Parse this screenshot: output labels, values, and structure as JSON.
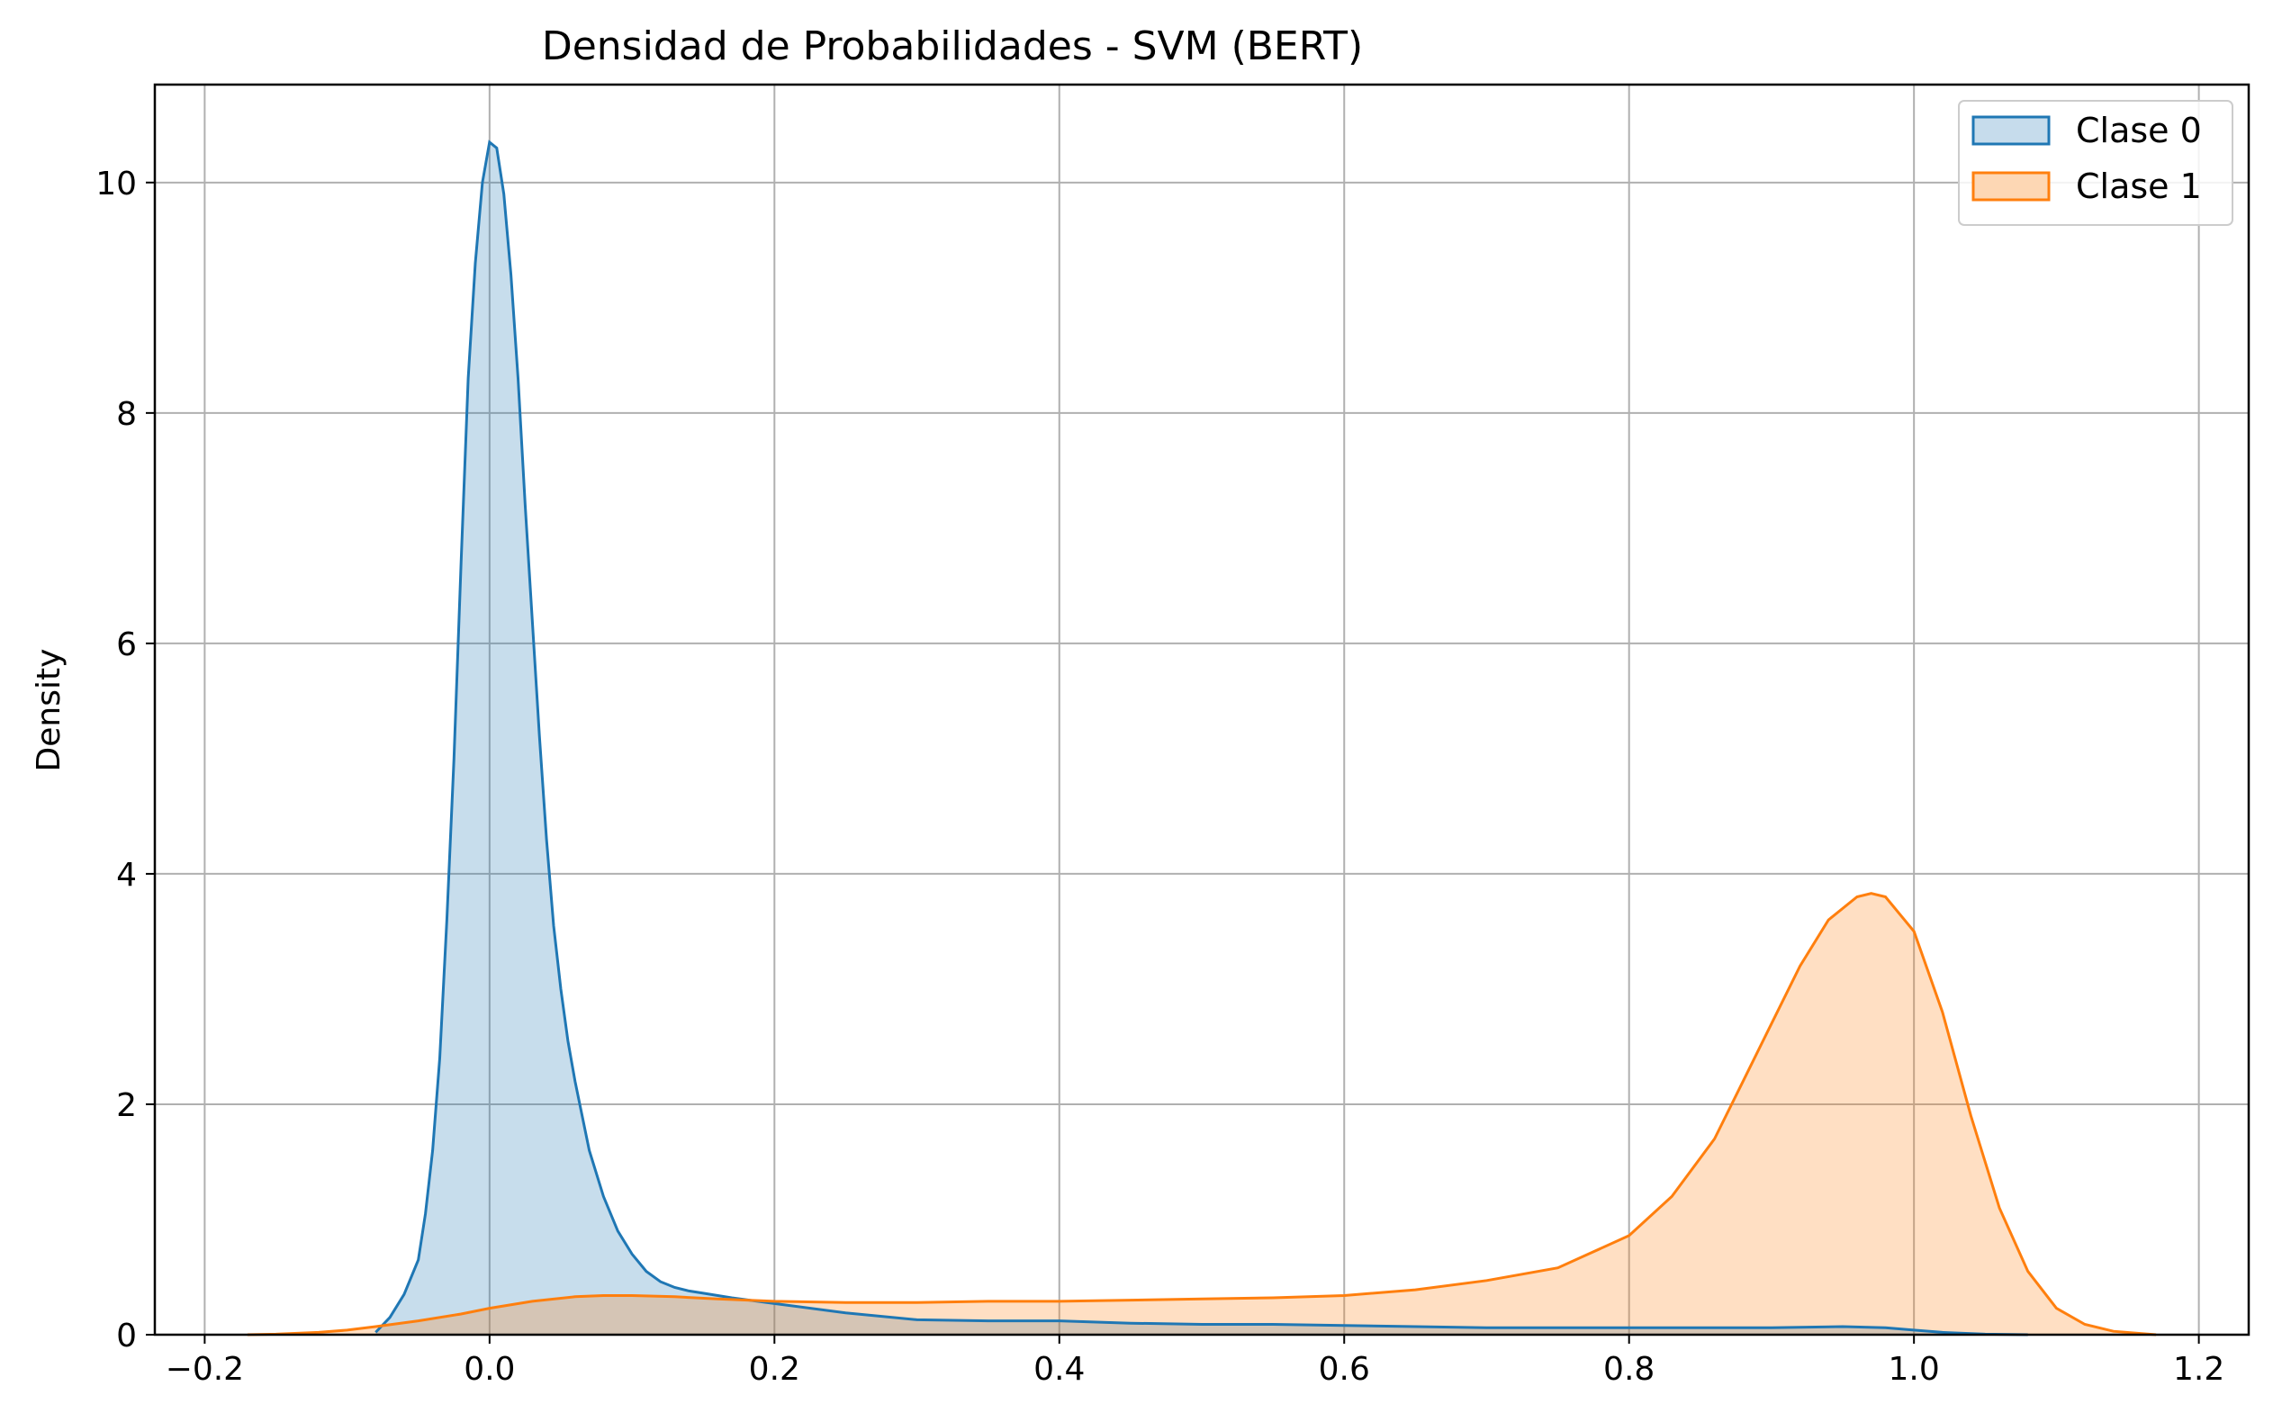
{
  "chart_data": {
    "type": "area",
    "title": "Densidad de Probabilidades - SVM (BERT)",
    "xlabel": "",
    "ylabel": "Density",
    "xlim": [
      -0.235,
      1.235
    ],
    "ylim": [
      0,
      10.85
    ],
    "x_ticks": [
      -0.2,
      0.0,
      0.2,
      0.4,
      0.6,
      0.8,
      1.0,
      1.2
    ],
    "x_tick_labels": [
      "−0.2",
      "0.0",
      "0.2",
      "0.4",
      "0.6",
      "0.8",
      "1.0",
      "1.2"
    ],
    "y_ticks": [
      0,
      2,
      4,
      6,
      8,
      10
    ],
    "y_tick_labels": [
      "0",
      "2",
      "4",
      "6",
      "8",
      "10"
    ],
    "grid": true,
    "legend_position": "top-right",
    "series": [
      {
        "name": "Clase 0",
        "color": "#1f77b4",
        "fill": "#c6dcec",
        "x": [
          -0.08,
          -0.07,
          -0.06,
          -0.05,
          -0.045,
          -0.04,
          -0.035,
          -0.03,
          -0.025,
          -0.02,
          -0.015,
          -0.01,
          -0.005,
          0.0,
          0.005,
          0.01,
          0.015,
          0.02,
          0.025,
          0.03,
          0.035,
          0.04,
          0.045,
          0.05,
          0.055,
          0.06,
          0.065,
          0.07,
          0.08,
          0.09,
          0.1,
          0.11,
          0.12,
          0.13,
          0.14,
          0.15,
          0.17,
          0.2,
          0.25,
          0.3,
          0.35,
          0.4,
          0.45,
          0.5,
          0.55,
          0.6,
          0.65,
          0.7,
          0.75,
          0.8,
          0.85,
          0.9,
          0.95,
          0.98,
          1.0,
          1.02,
          1.05,
          1.08
        ],
        "y": [
          0.02,
          0.15,
          0.35,
          0.65,
          1.05,
          1.6,
          2.4,
          3.6,
          5.0,
          6.7,
          8.3,
          9.3,
          10.0,
          10.35,
          10.3,
          9.9,
          9.2,
          8.3,
          7.2,
          6.2,
          5.2,
          4.3,
          3.55,
          3.0,
          2.55,
          2.2,
          1.9,
          1.6,
          1.2,
          0.9,
          0.7,
          0.55,
          0.46,
          0.41,
          0.38,
          0.36,
          0.32,
          0.27,
          0.19,
          0.13,
          0.12,
          0.12,
          0.1,
          0.09,
          0.09,
          0.08,
          0.07,
          0.06,
          0.06,
          0.06,
          0.06,
          0.06,
          0.07,
          0.06,
          0.04,
          0.02,
          0.005,
          0.0
        ]
      },
      {
        "name": "Clase 1",
        "color": "#ff7f0e",
        "fill": "#fdd7b4",
        "x": [
          -0.17,
          -0.15,
          -0.12,
          -0.1,
          -0.08,
          -0.05,
          -0.02,
          0.0,
          0.03,
          0.06,
          0.08,
          0.1,
          0.13,
          0.16,
          0.2,
          0.25,
          0.3,
          0.35,
          0.4,
          0.45,
          0.5,
          0.55,
          0.6,
          0.65,
          0.7,
          0.75,
          0.8,
          0.83,
          0.86,
          0.88,
          0.9,
          0.92,
          0.94,
          0.96,
          0.97,
          0.98,
          1.0,
          1.02,
          1.04,
          1.06,
          1.08,
          1.1,
          1.12,
          1.14,
          1.17
        ],
        "y": [
          0.0,
          0.005,
          0.02,
          0.04,
          0.07,
          0.12,
          0.18,
          0.23,
          0.29,
          0.33,
          0.34,
          0.34,
          0.33,
          0.31,
          0.29,
          0.28,
          0.28,
          0.29,
          0.29,
          0.3,
          0.31,
          0.32,
          0.34,
          0.39,
          0.47,
          0.58,
          0.86,
          1.2,
          1.7,
          2.2,
          2.7,
          3.2,
          3.6,
          3.8,
          3.83,
          3.8,
          3.5,
          2.8,
          1.9,
          1.1,
          0.55,
          0.23,
          0.09,
          0.03,
          0.0
        ]
      }
    ]
  }
}
